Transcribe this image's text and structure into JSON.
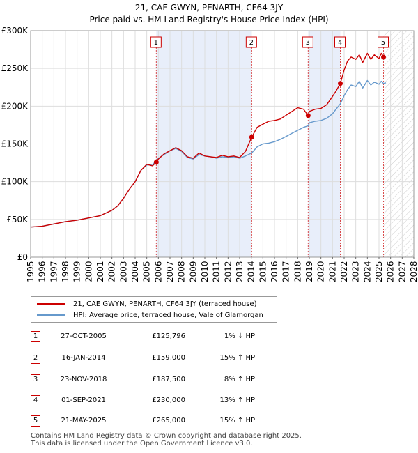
{
  "title": "21, CAE GWYN, PENARTH, CF64 3JY",
  "subtitle": "Price paid vs. HM Land Registry's House Price Index (HPI)",
  "chart_data": {
    "type": "line",
    "title": "21, CAE GWYN, PENARTH, CF64 3JY",
    "subtitle": "Price paid vs. HM Land Registry's House Price Index (HPI)",
    "xlim": [
      1995,
      2028
    ],
    "ylim": [
      0,
      300000
    ],
    "y_ticks": [
      0,
      50000,
      100000,
      150000,
      200000,
      250000,
      300000
    ],
    "y_tick_labels": [
      "£0",
      "£50K",
      "£100K",
      "£150K",
      "£200K",
      "£250K",
      "£300K"
    ],
    "x_tick_labels": [
      "1995",
      "1996",
      "1997",
      "1998",
      "1999",
      "2000",
      "2001",
      "2002",
      "2003",
      "2004",
      "2005",
      "2006",
      "2007",
      "2008",
      "2009",
      "2010",
      "2011",
      "2012",
      "2013",
      "2014",
      "2015",
      "2016",
      "2017",
      "2018",
      "2019",
      "2020",
      "2021",
      "2022",
      "2023",
      "2024",
      "2025",
      "2026",
      "2027",
      "2028"
    ],
    "grid": true,
    "shaded_periods": [
      [
        2005.82,
        2014.04
      ],
      [
        2018.9,
        2021.67
      ]
    ],
    "forecast_hatch_from": 2025.39,
    "series": [
      {
        "name": "21, CAE GWYN, PENARTH, CF64 3JY (terraced house)",
        "color": "#cc0000",
        "x": [
          1995,
          1996,
          1997,
          1998,
          1999,
          2000,
          2001,
          2002,
          2002.5,
          2003,
          2003.5,
          2004,
          2004.5,
          2005,
          2005.5,
          2005.82,
          2006,
          2006.5,
          2007,
          2007.5,
          2008,
          2008.5,
          2009,
          2009.5,
          2010,
          2010.5,
          2011,
          2011.5,
          2012,
          2012.5,
          2013,
          2013.5,
          2014.04,
          2014.5,
          2015,
          2015.5,
          2016,
          2016.5,
          2017,
          2017.5,
          2018,
          2018.5,
          2018.9,
          2019,
          2019.5,
          2020,
          2020.5,
          2021,
          2021.3,
          2021.67,
          2022,
          2022.3,
          2022.6,
          2023,
          2023.3,
          2023.6,
          2024,
          2024.3,
          2024.6,
          2025,
          2025.2,
          2025.39
        ],
        "values": [
          40000,
          41000,
          44000,
          47000,
          49000,
          52000,
          55000,
          62000,
          68000,
          78000,
          90000,
          100000,
          115000,
          123000,
          121000,
          125796,
          130000,
          137000,
          141000,
          145000,
          141000,
          133000,
          131000,
          138000,
          134000,
          133000,
          132000,
          135000,
          133000,
          134000,
          132000,
          140000,
          159000,
          172000,
          176000,
          180000,
          181000,
          183000,
          188000,
          193000,
          198000,
          196000,
          187500,
          193000,
          196000,
          197000,
          202000,
          213000,
          220000,
          230000,
          248000,
          260000,
          265000,
          262000,
          268000,
          258000,
          270000,
          262000,
          268000,
          263000,
          270000,
          265000
        ]
      },
      {
        "name": "HPI: Average price, terraced house, Vale of Glamorgan",
        "color": "#6699cc",
        "x": [
          1995,
          1996,
          1997,
          1998,
          1999,
          2000,
          2001,
          2002,
          2002.5,
          2003,
          2003.5,
          2004,
          2004.5,
          2005,
          2005.5,
          2005.82,
          2006,
          2006.5,
          2007,
          2007.5,
          2008,
          2008.5,
          2009,
          2009.5,
          2010,
          2010.5,
          2011,
          2011.5,
          2012,
          2012.5,
          2013,
          2013.5,
          2014.04,
          2014.5,
          2015,
          2015.5,
          2016,
          2016.5,
          2017,
          2017.5,
          2018,
          2018.5,
          2018.9,
          2019,
          2019.5,
          2020,
          2020.5,
          2021,
          2021.3,
          2021.67,
          2022,
          2022.3,
          2022.6,
          2023,
          2023.3,
          2023.6,
          2024,
          2024.3,
          2024.6,
          2025,
          2025.2,
          2025.39,
          2025.6
        ],
        "values": [
          40000,
          41000,
          44000,
          47000,
          49000,
          52000,
          55000,
          62000,
          68000,
          78000,
          90000,
          100000,
          115000,
          122000,
          123000,
          127000,
          131000,
          136000,
          141000,
          144000,
          140000,
          132000,
          130000,
          136000,
          134000,
          133000,
          131000,
          133000,
          132000,
          133000,
          131000,
          134000,
          138000,
          146000,
          150000,
          151000,
          153000,
          156000,
          160000,
          164000,
          168000,
          172000,
          174000,
          178000,
          180000,
          181000,
          184000,
          190000,
          196000,
          203000,
          214000,
          222000,
          228000,
          226000,
          233000,
          224000,
          234000,
          228000,
          232000,
          229000,
          233000,
          230000,
          231000
        ]
      }
    ],
    "sales": [
      {
        "n": "1",
        "x": 2005.82,
        "value": 125796
      },
      {
        "n": "2",
        "x": 2014.04,
        "value": 159000
      },
      {
        "n": "3",
        "x": 2018.9,
        "value": 187500
      },
      {
        "n": "4",
        "x": 2021.67,
        "value": 230000
      },
      {
        "n": "5",
        "x": 2025.39,
        "value": 265000
      }
    ]
  },
  "legend": {
    "property": "21, CAE GWYN, PENARTH, CF64 3JY (terraced house)",
    "hpi": "HPI: Average price, terraced house, Vale of Glamorgan",
    "property_color": "#cc0000",
    "hpi_color": "#6699cc"
  },
  "table": [
    {
      "n": "1",
      "date": "27-OCT-2005",
      "price": "£125,796",
      "hpi": "1% ↓ HPI"
    },
    {
      "n": "2",
      "date": "16-JAN-2014",
      "price": "£159,000",
      "hpi": "15% ↑ HPI"
    },
    {
      "n": "3",
      "date": "23-NOV-2018",
      "price": "£187,500",
      "hpi": "8% ↑ HPI"
    },
    {
      "n": "4",
      "date": "01-SEP-2021",
      "price": "£230,000",
      "hpi": "13% ↑ HPI"
    },
    {
      "n": "5",
      "date": "21-MAY-2025",
      "price": "£265,000",
      "hpi": "15% ↑ HPI"
    }
  ],
  "footer": {
    "line1": "Contains HM Land Registry data © Crown copyright and database right 2025.",
    "line2": "This data is licensed under the Open Government Licence v3.0."
  }
}
